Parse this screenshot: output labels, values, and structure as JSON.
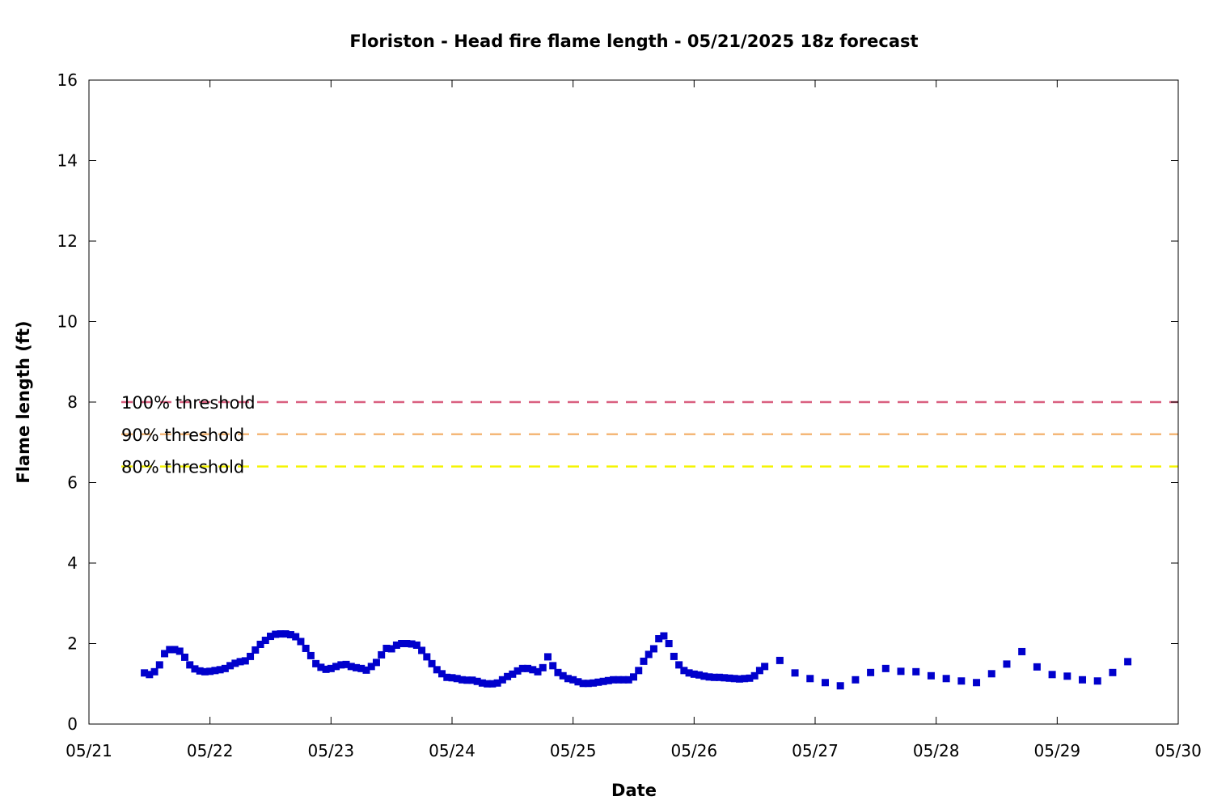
{
  "chart_data": {
    "type": "scatter",
    "title": "Floriston - Head fire flame length - 05/21/2025 18z forecast",
    "xlabel": "Date",
    "ylabel": "Flame length (ft)",
    "x_ticks": [
      "05/21",
      "05/22",
      "05/23",
      "05/24",
      "05/25",
      "05/26",
      "05/27",
      "05/28",
      "05/29",
      "05/30"
    ],
    "y_ticks": [
      "0",
      "2",
      "4",
      "6",
      "8",
      "10",
      "12",
      "14",
      "16"
    ],
    "xlim": [
      "05/21 00:00",
      "05/30 00:00"
    ],
    "ylim": [
      0,
      16
    ],
    "grid": false,
    "legend_placement": "left",
    "thresholds": [
      {
        "name": "100% threshold",
        "value": 8.0,
        "color": "#d95f7f",
        "style": "dashed"
      },
      {
        "name": "90% threshold",
        "value": 7.2,
        "color": "#f4b778",
        "style": "dashed"
      },
      {
        "name": "80% threshold",
        "value": 6.4,
        "color": "#f4f400",
        "style": "dashed"
      }
    ],
    "series": [
      {
        "marker": "square",
        "color": "#0000cc",
        "points": [
          [
            "05/21 11:00",
            1.27
          ],
          [
            "05/21 12:00",
            1.23
          ],
          [
            "05/21 13:00",
            1.3
          ],
          [
            "05/21 14:00",
            1.47
          ],
          [
            "05/21 15:00",
            1.75
          ],
          [
            "05/21 16:00",
            1.85
          ],
          [
            "05/21 17:00",
            1.85
          ],
          [
            "05/21 18:00",
            1.81
          ],
          [
            "05/21 19:00",
            1.66
          ],
          [
            "05/21 20:00",
            1.47
          ],
          [
            "05/21 21:00",
            1.37
          ],
          [
            "05/21 22:00",
            1.32
          ],
          [
            "05/21 23:00",
            1.3
          ],
          [
            "05/22 00:00",
            1.31
          ],
          [
            "05/22 01:00",
            1.33
          ],
          [
            "05/22 02:00",
            1.35
          ],
          [
            "05/22 03:00",
            1.38
          ],
          [
            "05/22 04:00",
            1.45
          ],
          [
            "05/22 05:00",
            1.51
          ],
          [
            "05/22 06:00",
            1.55
          ],
          [
            "05/22 07:00",
            1.57
          ],
          [
            "05/22 08:00",
            1.68
          ],
          [
            "05/22 09:00",
            1.84
          ],
          [
            "05/22 10:00",
            1.98
          ],
          [
            "05/22 11:00",
            2.08
          ],
          [
            "05/22 12:00",
            2.18
          ],
          [
            "05/22 13:00",
            2.23
          ],
          [
            "05/22 14:00",
            2.24
          ],
          [
            "05/22 15:00",
            2.24
          ],
          [
            "05/22 16:00",
            2.22
          ],
          [
            "05/22 17:00",
            2.17
          ],
          [
            "05/22 18:00",
            2.05
          ],
          [
            "05/22 19:00",
            1.88
          ],
          [
            "05/22 20:00",
            1.7
          ],
          [
            "05/22 21:00",
            1.5
          ],
          [
            "05/22 22:00",
            1.41
          ],
          [
            "05/22 23:00",
            1.36
          ],
          [
            "05/23 00:00",
            1.38
          ],
          [
            "05/23 01:00",
            1.43
          ],
          [
            "05/23 02:00",
            1.47
          ],
          [
            "05/23 03:00",
            1.48
          ],
          [
            "05/23 04:00",
            1.43
          ],
          [
            "05/23 05:00",
            1.4
          ],
          [
            "05/23 06:00",
            1.38
          ],
          [
            "05/23 07:00",
            1.34
          ],
          [
            "05/23 08:00",
            1.43
          ],
          [
            "05/23 09:00",
            1.53
          ],
          [
            "05/23 10:00",
            1.72
          ],
          [
            "05/23 11:00",
            1.88
          ],
          [
            "05/23 12:00",
            1.87
          ],
          [
            "05/23 13:00",
            1.96
          ],
          [
            "05/23 14:00",
            2.0
          ],
          [
            "05/23 15:00",
            2.0
          ],
          [
            "05/23 16:00",
            1.99
          ],
          [
            "05/23 17:00",
            1.96
          ],
          [
            "05/23 18:00",
            1.83
          ],
          [
            "05/23 19:00",
            1.67
          ],
          [
            "05/23 20:00",
            1.5
          ],
          [
            "05/23 21:00",
            1.35
          ],
          [
            "05/23 22:00",
            1.25
          ],
          [
            "05/23 23:00",
            1.16
          ],
          [
            "05/24 00:00",
            1.15
          ],
          [
            "05/24 01:00",
            1.13
          ],
          [
            "05/24 02:00",
            1.1
          ],
          [
            "05/24 03:00",
            1.09
          ],
          [
            "05/24 04:00",
            1.09
          ],
          [
            "05/24 05:00",
            1.06
          ],
          [
            "05/24 06:00",
            1.02
          ],
          [
            "05/24 07:00",
            1.0
          ],
          [
            "05/24 08:00",
            1.0
          ],
          [
            "05/24 09:00",
            1.02
          ],
          [
            "05/24 10:00",
            1.1
          ],
          [
            "05/24 11:00",
            1.18
          ],
          [
            "05/24 12:00",
            1.24
          ],
          [
            "05/24 13:00",
            1.32
          ],
          [
            "05/24 14:00",
            1.38
          ],
          [
            "05/24 15:00",
            1.38
          ],
          [
            "05/24 16:00",
            1.35
          ],
          [
            "05/24 17:00",
            1.3
          ],
          [
            "05/24 18:00",
            1.4
          ],
          [
            "05/24 19:00",
            1.67
          ],
          [
            "05/24 20:00",
            1.45
          ],
          [
            "05/24 21:00",
            1.28
          ],
          [
            "05/24 22:00",
            1.2
          ],
          [
            "05/24 23:00",
            1.13
          ],
          [
            "05/25 00:00",
            1.1
          ],
          [
            "05/25 01:00",
            1.05
          ],
          [
            "05/25 02:00",
            1.01
          ],
          [
            "05/25 03:00",
            1.01
          ],
          [
            "05/25 04:00",
            1.02
          ],
          [
            "05/25 05:00",
            1.04
          ],
          [
            "05/25 06:00",
            1.06
          ],
          [
            "05/25 07:00",
            1.08
          ],
          [
            "05/25 08:00",
            1.1
          ],
          [
            "05/25 09:00",
            1.1
          ],
          [
            "05/25 10:00",
            1.1
          ],
          [
            "05/25 11:00",
            1.1
          ],
          [
            "05/25 12:00",
            1.17
          ],
          [
            "05/25 13:00",
            1.33
          ],
          [
            "05/25 14:00",
            1.56
          ],
          [
            "05/25 15:00",
            1.73
          ],
          [
            "05/25 16:00",
            1.87
          ],
          [
            "05/25 17:00",
            2.12
          ],
          [
            "05/25 18:00",
            2.19
          ],
          [
            "05/25 19:00",
            2.0
          ],
          [
            "05/25 20:00",
            1.68
          ],
          [
            "05/25 21:00",
            1.47
          ],
          [
            "05/25 22:00",
            1.33
          ],
          [
            "05/25 23:00",
            1.27
          ],
          [
            "05/26 00:00",
            1.24
          ],
          [
            "05/26 01:00",
            1.22
          ],
          [
            "05/26 02:00",
            1.19
          ],
          [
            "05/26 03:00",
            1.17
          ],
          [
            "05/26 04:00",
            1.16
          ],
          [
            "05/26 05:00",
            1.16
          ],
          [
            "05/26 06:00",
            1.15
          ],
          [
            "05/26 07:00",
            1.14
          ],
          [
            "05/26 08:00",
            1.13
          ],
          [
            "05/26 09:00",
            1.12
          ],
          [
            "05/26 10:00",
            1.13
          ],
          [
            "05/26 11:00",
            1.14
          ],
          [
            "05/26 12:00",
            1.2
          ],
          [
            "05/26 13:00",
            1.33
          ],
          [
            "05/26 14:00",
            1.43
          ],
          [
            "05/26 17:00",
            1.58
          ],
          [
            "05/26 20:00",
            1.27
          ],
          [
            "05/26 23:00",
            1.13
          ],
          [
            "05/27 02:00",
            1.03
          ],
          [
            "05/27 05:00",
            0.95
          ],
          [
            "05/27 08:00",
            1.1
          ],
          [
            "05/27 11:00",
            1.28
          ],
          [
            "05/27 14:00",
            1.38
          ],
          [
            "05/27 17:00",
            1.31
          ],
          [
            "05/27 20:00",
            1.3
          ],
          [
            "05/27 23:00",
            1.2
          ],
          [
            "05/28 02:00",
            1.13
          ],
          [
            "05/28 05:00",
            1.07
          ],
          [
            "05/28 08:00",
            1.03
          ],
          [
            "05/28 11:00",
            1.25
          ],
          [
            "05/28 14:00",
            1.49
          ],
          [
            "05/28 17:00",
            1.8
          ],
          [
            "05/28 20:00",
            1.42
          ],
          [
            "05/28 23:00",
            1.23
          ],
          [
            "05/29 02:00",
            1.19
          ],
          [
            "05/29 05:00",
            1.1
          ],
          [
            "05/29 08:00",
            1.07
          ],
          [
            "05/29 11:00",
            1.28
          ],
          [
            "05/29 14:00",
            1.55
          ]
        ]
      }
    ]
  }
}
